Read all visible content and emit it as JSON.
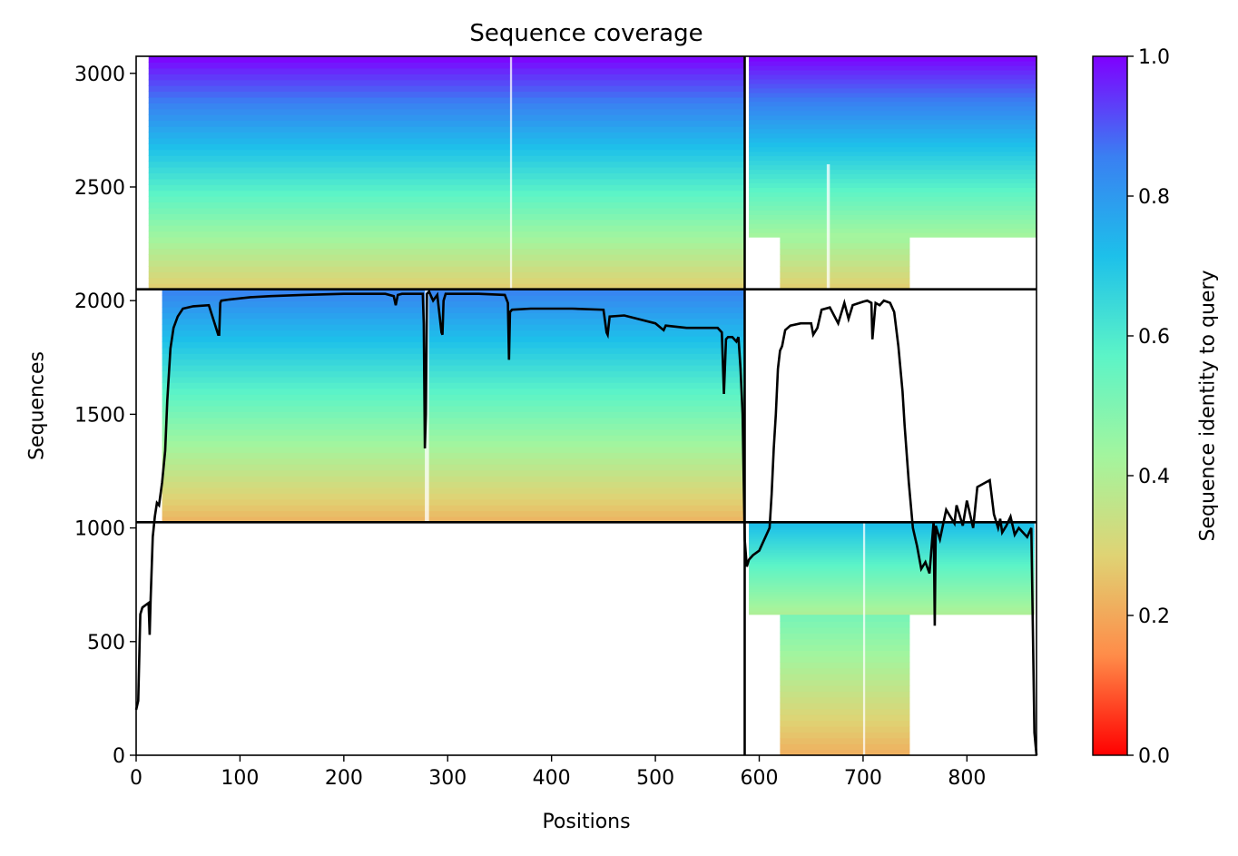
{
  "chart_data": {
    "type": "heatmap",
    "title": "Sequence coverage",
    "xlabel": "Positions",
    "ylabel": "Sequences",
    "xlim": [
      0,
      867
    ],
    "ylim": [
      0,
      3075
    ],
    "x_ticks": [
      0,
      100,
      200,
      300,
      400,
      500,
      600,
      700,
      800
    ],
    "y_ticks": [
      0,
      500,
      1000,
      1500,
      2000,
      2500,
      3000
    ],
    "chain_boundary_positions": [
      586
    ],
    "msa_block_boundaries": [
      1025,
      2050
    ],
    "colorbar": {
      "label": "Sequence identity to query",
      "range": [
        0.0,
        1.0
      ],
      "ticks": [
        "0.0",
        "0.2",
        "0.4",
        "0.6",
        "0.8",
        "1.0"
      ],
      "colormap": "rainbow_r",
      "stops": [
        "#ff0000",
        "#ff8c49",
        "#dfd374",
        "#a3f59e",
        "#5cf4c7",
        "#1dc0ea",
        "#3a7ff2",
        "#7f00ff"
      ]
    },
    "coverage_line": {
      "color": "#000000",
      "x": [
        0,
        2,
        4,
        6,
        9,
        12,
        13,
        14,
        16,
        18,
        20,
        22,
        25,
        28,
        30,
        33,
        36,
        40,
        45,
        55,
        70,
        79,
        80,
        81,
        82,
        90,
        110,
        130,
        160,
        200,
        240,
        248,
        250,
        252,
        256,
        270,
        276,
        277,
        278,
        279,
        280,
        282,
        286,
        290,
        294,
        295,
        296,
        298,
        310,
        330,
        355,
        358,
        359,
        360,
        362,
        380,
        420,
        450,
        453,
        454,
        456,
        470,
        500,
        508,
        510,
        530,
        560,
        564,
        566,
        568,
        570,
        574,
        578,
        580,
        582,
        584,
        586,
        588,
        590,
        594,
        600,
        605,
        610,
        612,
        614,
        616,
        618,
        620,
        622,
        625,
        630,
        640,
        650,
        652,
        656,
        660,
        668,
        676,
        682,
        686,
        690,
        700,
        704,
        708,
        709,
        712,
        716,
        720,
        726,
        730,
        734,
        738,
        740,
        744,
        748,
        752,
        756,
        760,
        764,
        768,
        769,
        770,
        774,
        780,
        788,
        790,
        796,
        800,
        806,
        810,
        818,
        822,
        826,
        830,
        832,
        834,
        838,
        842,
        846,
        850,
        854,
        858,
        862,
        865,
        867
      ],
      "y": [
        200,
        240,
        620,
        650,
        660,
        670,
        530,
        690,
        960,
        1050,
        1110,
        1100,
        1200,
        1340,
        1560,
        1790,
        1880,
        1930,
        1965,
        1975,
        1980,
        1850,
        1850,
        1990,
        2000,
        2005,
        2015,
        2020,
        2025,
        2030,
        2030,
        2020,
        1980,
        2025,
        2030,
        2030,
        2030,
        1900,
        1350,
        1500,
        2030,
        2040,
        2000,
        2025,
        1860,
        1850,
        2000,
        2030,
        2030,
        2030,
        2025,
        1990,
        1740,
        1950,
        1960,
        1965,
        1965,
        1960,
        1860,
        1850,
        1930,
        1935,
        1900,
        1870,
        1890,
        1880,
        1880,
        1860,
        1590,
        1830,
        1840,
        1840,
        1820,
        1840,
        1700,
        1500,
        950,
        830,
        860,
        880,
        900,
        950,
        1000,
        1150,
        1350,
        1500,
        1700,
        1780,
        1800,
        1870,
        1890,
        1900,
        1900,
        1850,
        1880,
        1960,
        1970,
        1900,
        1990,
        1920,
        1980,
        1995,
        2000,
        1990,
        1830,
        1990,
        1980,
        2000,
        1990,
        1950,
        1800,
        1600,
        1450,
        1200,
        1000,
        920,
        820,
        850,
        800,
        1030,
        570,
        1010,
        950,
        1080,
        1020,
        1100,
        1010,
        1120,
        1000,
        1180,
        1200,
        1210,
        1060,
        1000,
        1040,
        980,
        1010,
        1050,
        970,
        1000,
        980,
        960,
        1000,
        100,
        0
      ]
    }
  }
}
